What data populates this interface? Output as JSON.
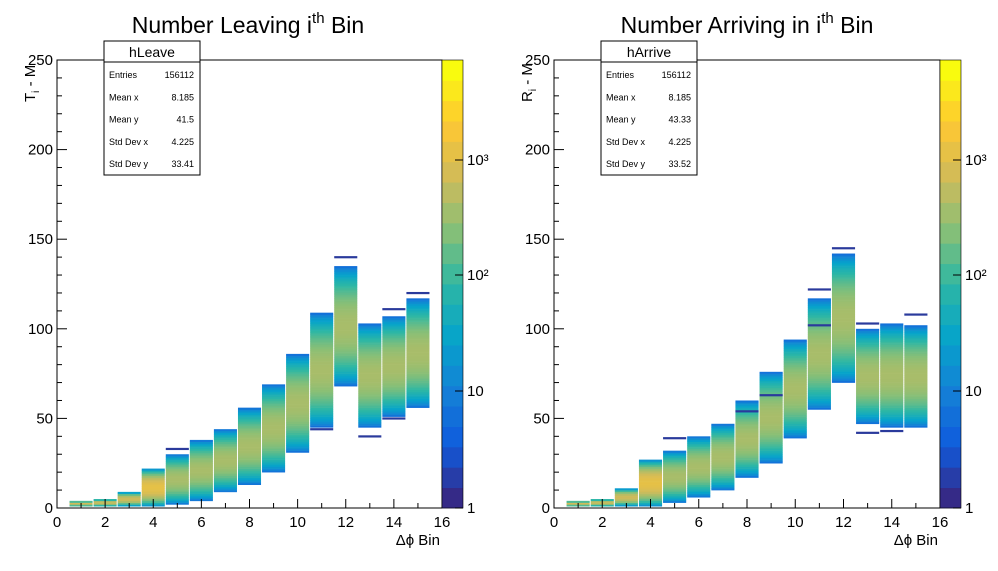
{
  "chart_data": [
    {
      "type": "heatmap",
      "title": "Number Leaving i",
      "title_sup": "th",
      "title_suffix": " Bin",
      "xlabel": "Δϕ Bin",
      "ylabel": "T",
      "ylabel_sub": "i",
      "ylabel_suffix": " - M",
      "xlim": [
        0,
        16
      ],
      "ylim": [
        0,
        250
      ],
      "xticks": [
        "0",
        "2",
        "4",
        "6",
        "8",
        "10",
        "12",
        "14",
        "16"
      ],
      "yticks": [
        "0",
        "50",
        "100",
        "150",
        "200",
        "250"
      ],
      "colorbar_labels": [
        "1",
        "10",
        "10²",
        "10³"
      ],
      "stats": {
        "name": "hLeave",
        "rows": [
          {
            "label": "Entries",
            "value": "156112"
          },
          {
            "label": "Mean x",
            "value": "8.185"
          },
          {
            "label": "Mean y",
            "value": "41.5"
          },
          {
            "label": "Std Dev x",
            "value": "4.225"
          },
          {
            "label": "Std Dev y",
            "value": "33.41"
          }
        ]
      },
      "columns": [
        {
          "x": 1,
          "lo": 1,
          "hi": 4,
          "outliers": []
        },
        {
          "x": 2,
          "lo": 1,
          "hi": 5,
          "outliers": []
        },
        {
          "x": 3,
          "lo": 1,
          "hi": 9,
          "outliers": []
        },
        {
          "x": 4,
          "lo": 1,
          "hi": 22,
          "outliers": []
        },
        {
          "x": 5,
          "lo": 2,
          "hi": 30,
          "outliers": [
            33
          ]
        },
        {
          "x": 6,
          "lo": 4,
          "hi": 38,
          "outliers": []
        },
        {
          "x": 7,
          "lo": 9,
          "hi": 44,
          "outliers": []
        },
        {
          "x": 8,
          "lo": 13,
          "hi": 56,
          "outliers": []
        },
        {
          "x": 9,
          "lo": 20,
          "hi": 69,
          "outliers": []
        },
        {
          "x": 10,
          "lo": 31,
          "hi": 86,
          "outliers": []
        },
        {
          "x": 11,
          "lo": 45,
          "hi": 109,
          "outliers": [
            44
          ]
        },
        {
          "x": 12,
          "lo": 68,
          "hi": 135,
          "outliers": [
            140
          ]
        },
        {
          "x": 13,
          "lo": 45,
          "hi": 103,
          "outliers": [
            40
          ]
        },
        {
          "x": 14,
          "lo": 51,
          "hi": 107,
          "outliers": [
            111,
            50
          ]
        },
        {
          "x": 15,
          "lo": 56,
          "hi": 117,
          "outliers": [
            120
          ]
        }
      ]
    },
    {
      "type": "heatmap",
      "title": "Number Arriving in i",
      "title_sup": "th",
      "title_suffix": " Bin",
      "xlabel": "Δϕ Bin",
      "ylabel": "R",
      "ylabel_sub": "i",
      "ylabel_suffix": " - M",
      "xlim": [
        0,
        16
      ],
      "ylim": [
        0,
        250
      ],
      "xticks": [
        "0",
        "2",
        "4",
        "6",
        "8",
        "10",
        "12",
        "14",
        "16"
      ],
      "yticks": [
        "0",
        "50",
        "100",
        "150",
        "200",
        "250"
      ],
      "colorbar_labels": [
        "1",
        "10",
        "10²",
        "10³"
      ],
      "stats": {
        "name": "hArrive",
        "rows": [
          {
            "label": "Entries",
            "value": "156112"
          },
          {
            "label": "Mean x",
            "value": "8.185"
          },
          {
            "label": "Mean y",
            "value": "43.33"
          },
          {
            "label": "Std Dev x",
            "value": "4.225"
          },
          {
            "label": "Std Dev y",
            "value": "33.52"
          }
        ]
      },
      "columns": [
        {
          "x": 1,
          "lo": 1,
          "hi": 4,
          "outliers": []
        },
        {
          "x": 2,
          "lo": 1,
          "hi": 5,
          "outliers": []
        },
        {
          "x": 3,
          "lo": 1,
          "hi": 11,
          "outliers": []
        },
        {
          "x": 4,
          "lo": 1,
          "hi": 27,
          "outliers": []
        },
        {
          "x": 5,
          "lo": 3,
          "hi": 32,
          "outliers": [
            39
          ]
        },
        {
          "x": 6,
          "lo": 6,
          "hi": 40,
          "outliers": []
        },
        {
          "x": 7,
          "lo": 10,
          "hi": 47,
          "outliers": []
        },
        {
          "x": 8,
          "lo": 17,
          "hi": 60,
          "outliers": [
            54
          ]
        },
        {
          "x": 9,
          "lo": 25,
          "hi": 76,
          "outliers": [
            63
          ]
        },
        {
          "x": 10,
          "lo": 39,
          "hi": 94,
          "outliers": []
        },
        {
          "x": 11,
          "lo": 55,
          "hi": 117,
          "outliers": [
            102,
            122
          ]
        },
        {
          "x": 12,
          "lo": 70,
          "hi": 142,
          "outliers": [
            145
          ]
        },
        {
          "x": 13,
          "lo": 47,
          "hi": 100,
          "outliers": [
            42,
            103
          ]
        },
        {
          "x": 14,
          "lo": 45,
          "hi": 103,
          "outliers": [
            43
          ]
        },
        {
          "x": 15,
          "lo": 45,
          "hi": 102,
          "outliers": [
            108
          ]
        }
      ]
    }
  ]
}
